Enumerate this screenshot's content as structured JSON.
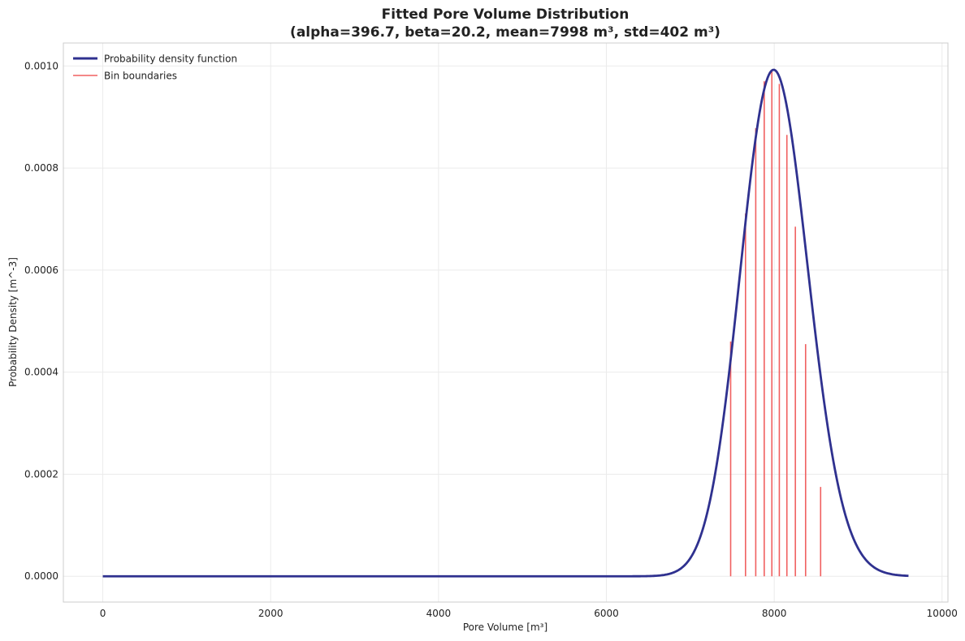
{
  "chart_data": {
    "type": "line",
    "title": "Fitted Pore Volume Distribution",
    "subtitle": "(alpha=396.7, beta=20.2, mean=7998 m³, std=402 m³)",
    "xlabel": "Pore Volume [m³]",
    "ylabel": "Probability Density [m^-3]",
    "xlim": [
      -470,
      10070
    ],
    "ylim": [
      -5.05e-05,
      0.001045
    ],
    "xticks": [
      0,
      2000,
      4000,
      6000,
      8000,
      10000
    ],
    "xtick_labels": [
      "0",
      "2000",
      "4000",
      "6000",
      "8000",
      "10000"
    ],
    "yticks": [
      0.0,
      0.0002,
      0.0004,
      0.0006,
      0.0008,
      0.001
    ],
    "ytick_labels": [
      "0.0000",
      "0.0002",
      "0.0004",
      "0.0006",
      "0.0008",
      "0.0010"
    ],
    "grid": true,
    "legend_position": "top-left",
    "pdf": {
      "alpha": 396.7,
      "beta": 20.2,
      "x_min": 0,
      "x_max": 9600,
      "samples": 600
    },
    "series": [
      {
        "name": "Probability density function",
        "kind": "line",
        "color": "#2f318f",
        "points": [
          [
            0,
            0
          ],
          [
            6000,
            0
          ],
          [
            6400,
            3e-07
          ],
          [
            6600,
            2.2e-06
          ],
          [
            6800,
            1.41e-05
          ],
          [
            7000,
            5.95e-05
          ],
          [
            7200,
            0.0001764
          ],
          [
            7400,
            0.0003656
          ],
          [
            7600,
            0.0006174
          ],
          [
            7800,
            0.0008654
          ],
          [
            8000,
            0.0009928
          ],
          [
            8200,
            0.0008819
          ],
          [
            8400,
            0.0006139
          ],
          [
            8600,
            0.0003295
          ],
          [
            8800,
            0.0001365
          ],
          [
            9000,
            4.41e-05
          ],
          [
            9200,
            1.11e-05
          ],
          [
            9400,
            2.1e-06
          ],
          [
            9600,
            3e-07
          ]
        ]
      },
      {
        "name": "Bin boundaries",
        "kind": "vlines",
        "color": "#f06060",
        "x": [
          7481,
          7658,
          7780,
          7881,
          7972,
          8061,
          8151,
          8252,
          8374,
          8553
        ],
        "y": [
          0.00046,
          0.000711,
          0.000878,
          0.00097,
          0.00099,
          0.000965,
          0.000865,
          0.000685,
          0.000455,
          0.000175
        ]
      }
    ],
    "colors": {
      "pdf_line": "#2f318f",
      "bin_line": "#f06060",
      "grid": "#ebebeb",
      "spine": "#cccccc",
      "text": "#222222"
    }
  }
}
